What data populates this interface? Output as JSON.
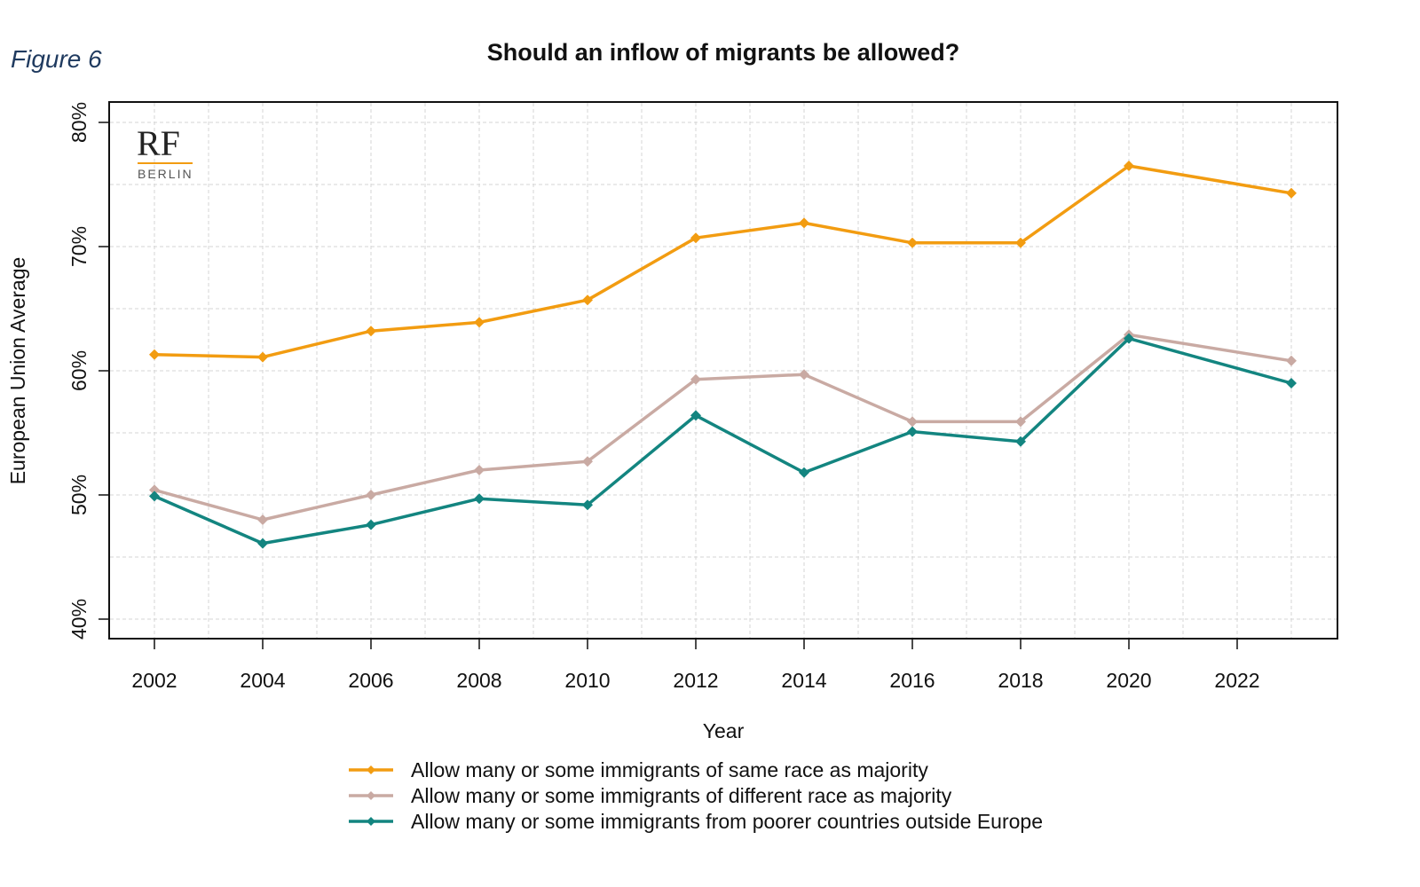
{
  "figure_label": "Figure 6",
  "logo": {
    "main": "RF",
    "sub": "BERLIN"
  },
  "chart_data": {
    "type": "line",
    "title": "Should an inflow of migrants be allowed?",
    "xlabel": "Year",
    "ylabel": "European Union Average",
    "x": [
      2002,
      2004,
      2006,
      2008,
      2010,
      2012,
      2014,
      2016,
      2018,
      2020,
      2023
    ],
    "x_ticks": [
      "2002",
      "2004",
      "2006",
      "2008",
      "2010",
      "2012",
      "2014",
      "2016",
      "2018",
      "2020",
      "2022"
    ],
    "y_ticks": [
      "40%",
      "50%",
      "60%",
      "70%",
      "80%"
    ],
    "ylim": [
      38.5,
      81.6
    ],
    "xlim": [
      2001.2,
      2023.9
    ],
    "grid": true,
    "legend_position": "bottom",
    "series": [
      {
        "name": "Allow many or some immigrants of same race as majority",
        "color": "#f29c11",
        "values": [
          61.3,
          61.1,
          63.2,
          63.9,
          65.7,
          70.7,
          71.9,
          70.3,
          70.3,
          76.5,
          74.3
        ]
      },
      {
        "name": "Allow many or some immigrants of different race as majority",
        "color": "#c9aaa3",
        "values": [
          50.4,
          48.0,
          50.0,
          52.0,
          52.7,
          59.3,
          59.7,
          55.9,
          55.9,
          62.9,
          60.8
        ]
      },
      {
        "name": "Allow many or some immigrants from poorer countries outside Europe",
        "color": "#138580",
        "values": [
          49.9,
          46.1,
          47.6,
          49.7,
          49.2,
          56.4,
          51.8,
          55.1,
          54.3,
          62.6,
          59.0
        ]
      }
    ]
  }
}
